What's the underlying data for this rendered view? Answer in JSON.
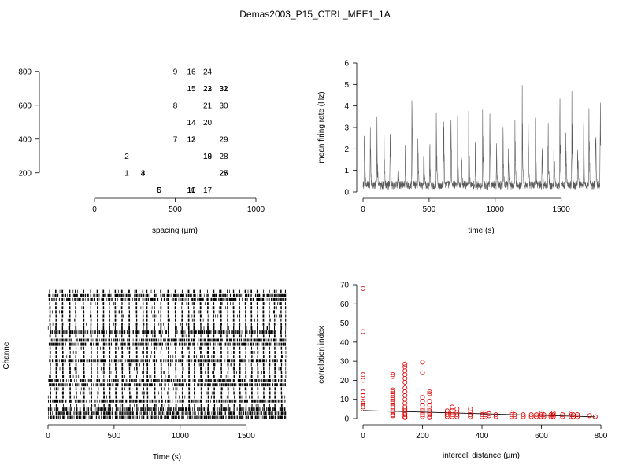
{
  "figure": {
    "title": "Demas2003_P15_CTRL_MEE1_1A"
  },
  "chart_data": [
    {
      "id": "layout",
      "type": "scatter",
      "xlabel": "spacing (µm)",
      "xlim": [
        0,
        1000
      ],
      "ylim": [
        50,
        850
      ],
      "xticks": [
        0,
        500,
        1000
      ],
      "yticks": [
        200,
        400,
        600,
        800
      ],
      "point_style": "text-labels",
      "points": [
        {
          "label": "9",
          "x": 500,
          "y": 800
        },
        {
          "label": "16",
          "x": 600,
          "y": 800
        },
        {
          "label": "24",
          "x": 700,
          "y": 800
        },
        {
          "label": "15",
          "x": 600,
          "y": 700
        },
        {
          "label": "22",
          "x": 700,
          "y": 700
        },
        {
          "label": "23",
          "x": 700,
          "y": 700
        },
        {
          "label": "31",
          "x": 800,
          "y": 700
        },
        {
          "label": "32",
          "x": 800,
          "y": 700
        },
        {
          "label": "8",
          "x": 500,
          "y": 600
        },
        {
          "label": "21",
          "x": 700,
          "y": 600
        },
        {
          "label": "30",
          "x": 800,
          "y": 600
        },
        {
          "label": "14",
          "x": 600,
          "y": 500
        },
        {
          "label": "20",
          "x": 700,
          "y": 500
        },
        {
          "label": "7",
          "x": 500,
          "y": 400
        },
        {
          "label": "12",
          "x": 600,
          "y": 400
        },
        {
          "label": "13",
          "x": 600,
          "y": 400
        },
        {
          "label": "29",
          "x": 800,
          "y": 400
        },
        {
          "label": "2",
          "x": 200,
          "y": 300
        },
        {
          "label": "18",
          "x": 700,
          "y": 300
        },
        {
          "label": "19",
          "x": 700,
          "y": 300
        },
        {
          "label": "28",
          "x": 800,
          "y": 300
        },
        {
          "label": "1",
          "x": 200,
          "y": 200
        },
        {
          "label": "3",
          "x": 300,
          "y": 200
        },
        {
          "label": "4",
          "x": 300,
          "y": 200
        },
        {
          "label": "25",
          "x": 800,
          "y": 200
        },
        {
          "label": "26",
          "x": 800,
          "y": 200
        },
        {
          "label": "27",
          "x": 800,
          "y": 200
        },
        {
          "label": "5",
          "x": 400,
          "y": 100
        },
        {
          "label": "6",
          "x": 400,
          "y": 100
        },
        {
          "label": "10",
          "x": 600,
          "y": 100
        },
        {
          "label": "11",
          "x": 600,
          "y": 100
        },
        {
          "label": "17",
          "x": 700,
          "y": 100
        }
      ]
    },
    {
      "id": "rate",
      "type": "line",
      "xlabel": "time (s)",
      "ylabel": "mean firing rate (Hz)",
      "xlim": [
        0,
        1800
      ],
      "ylim": [
        0,
        6
      ],
      "xticks": [
        0,
        500,
        1000,
        1500
      ],
      "yticks": [
        0,
        1,
        2,
        3,
        4,
        5,
        6
      ],
      "color": "#5a5a5a",
      "baseline_rate": 0.4,
      "bursts": [
        {
          "t": 10,
          "peak": 4.3
        },
        {
          "t": 55,
          "peak": 3.5
        },
        {
          "t": 105,
          "peak": 4.4
        },
        {
          "t": 160,
          "peak": 3.2
        },
        {
          "t": 205,
          "peak": 4.4
        },
        {
          "t": 265,
          "peak": 3.0
        },
        {
          "t": 320,
          "peak": 3.6
        },
        {
          "t": 370,
          "peak": 5.6
        },
        {
          "t": 415,
          "peak": 3.3
        },
        {
          "t": 460,
          "peak": 3.8
        },
        {
          "t": 505,
          "peak": 3.1
        },
        {
          "t": 555,
          "peak": 4.6
        },
        {
          "t": 610,
          "peak": 4.7
        },
        {
          "t": 665,
          "peak": 4.9
        },
        {
          "t": 715,
          "peak": 4.6
        },
        {
          "t": 745,
          "peak": 3.0
        },
        {
          "t": 800,
          "peak": 5.3
        },
        {
          "t": 850,
          "peak": 3.5
        },
        {
          "t": 905,
          "peak": 4.3
        },
        {
          "t": 960,
          "peak": 4.4
        },
        {
          "t": 1010,
          "peak": 3.5
        },
        {
          "t": 1060,
          "peak": 3.9
        },
        {
          "t": 1100,
          "peak": 3.2
        },
        {
          "t": 1150,
          "peak": 4.2
        },
        {
          "t": 1205,
          "peak": 5.7
        },
        {
          "t": 1250,
          "peak": 4.5
        },
        {
          "t": 1305,
          "peak": 5.3
        },
        {
          "t": 1355,
          "peak": 4.0
        },
        {
          "t": 1400,
          "peak": 4.5
        },
        {
          "t": 1445,
          "peak": 4.3
        },
        {
          "t": 1490,
          "peak": 5.5
        },
        {
          "t": 1535,
          "peak": 4.0
        },
        {
          "t": 1580,
          "peak": 5.7
        },
        {
          "t": 1625,
          "peak": 3.6
        },
        {
          "t": 1670,
          "peak": 4.2
        },
        {
          "t": 1710,
          "peak": 4.7
        },
        {
          "t": 1760,
          "peak": 4.5
        },
        {
          "t": 1795,
          "peak": 6.1
        }
      ]
    },
    {
      "id": "raster",
      "type": "raster",
      "xlabel": "Time (s)",
      "ylabel": "Channel",
      "xlim": [
        0,
        1800
      ],
      "xticks": [
        0,
        500,
        1000,
        1500
      ],
      "channels": 32,
      "burst_times": [
        10,
        55,
        105,
        160,
        205,
        265,
        320,
        370,
        415,
        460,
        505,
        555,
        610,
        665,
        715,
        745,
        800,
        850,
        905,
        960,
        1010,
        1060,
        1100,
        1150,
        1205,
        1250,
        1305,
        1355,
        1400,
        1445,
        1490,
        1535,
        1580,
        1625,
        1670,
        1710,
        1760,
        1795
      ],
      "tonic_channels": [
        1,
        2,
        10,
        12,
        13,
        17,
        22,
        23,
        27,
        29,
        30,
        31
      ]
    },
    {
      "id": "corr",
      "type": "scatter",
      "xlabel": "intercell distance (µm)",
      "ylabel": "correlation index",
      "xlim": [
        0,
        800
      ],
      "ylim": [
        0,
        70
      ],
      "xticks": [
        0,
        200,
        400,
        600,
        800
      ],
      "yticks": [
        0,
        10,
        20,
        30,
        40,
        50,
        60,
        70
      ],
      "marker_color": "#dd0000",
      "fit_line": {
        "x": [
          0,
          780
        ],
        "y": [
          4.2,
          0.9
        ]
      },
      "points": [
        [
          0,
          68
        ],
        [
          0,
          45.5
        ],
        [
          0,
          23
        ],
        [
          0,
          20
        ],
        [
          0,
          14
        ],
        [
          0,
          12
        ],
        [
          0,
          9
        ],
        [
          0,
          8
        ],
        [
          0,
          7
        ],
        [
          0,
          6
        ],
        [
          0,
          5
        ],
        [
          100,
          23
        ],
        [
          100,
          22
        ],
        [
          100,
          15
        ],
        [
          100,
          14
        ],
        [
          100,
          13
        ],
        [
          100,
          12
        ],
        [
          100,
          11
        ],
        [
          100,
          10
        ],
        [
          100,
          9
        ],
        [
          100,
          8
        ],
        [
          100,
          7
        ],
        [
          100,
          6
        ],
        [
          100,
          5
        ],
        [
          100,
          4
        ],
        [
          100,
          3
        ],
        [
          100,
          2
        ],
        [
          100,
          1.5
        ],
        [
          141,
          28.5
        ],
        [
          141,
          27
        ],
        [
          141,
          25
        ],
        [
          141,
          23
        ],
        [
          141,
          21
        ],
        [
          141,
          19
        ],
        [
          141,
          16
        ],
        [
          141,
          14
        ],
        [
          141,
          12
        ],
        [
          141,
          10
        ],
        [
          141,
          8
        ],
        [
          141,
          6
        ],
        [
          141,
          5
        ],
        [
          141,
          4
        ],
        [
          141,
          3
        ],
        [
          141,
          2
        ],
        [
          141,
          1
        ],
        [
          141,
          0.5
        ],
        [
          200,
          29.5
        ],
        [
          200,
          24
        ],
        [
          200,
          11
        ],
        [
          200,
          9
        ],
        [
          200,
          7
        ],
        [
          200,
          5
        ],
        [
          200,
          4
        ],
        [
          200,
          3
        ],
        [
          200,
          2
        ],
        [
          200,
          1
        ],
        [
          224,
          14
        ],
        [
          224,
          13
        ],
        [
          224,
          9
        ],
        [
          224,
          7
        ],
        [
          224,
          5
        ],
        [
          224,
          4
        ],
        [
          224,
          3
        ],
        [
          224,
          2
        ],
        [
          224,
          1
        ],
        [
          224,
          0.5
        ],
        [
          283,
          4
        ],
        [
          283,
          3
        ],
        [
          283,
          2
        ],
        [
          283,
          1
        ],
        [
          300,
          6
        ],
        [
          300,
          4
        ],
        [
          300,
          3
        ],
        [
          300,
          2
        ],
        [
          300,
          1
        ],
        [
          316,
          5
        ],
        [
          316,
          3
        ],
        [
          316,
          2
        ],
        [
          316,
          1
        ],
        [
          361,
          5
        ],
        [
          361,
          3
        ],
        [
          361,
          2
        ],
        [
          361,
          1
        ],
        [
          400,
          3
        ],
        [
          400,
          2
        ],
        [
          400,
          1
        ],
        [
          412,
          3
        ],
        [
          412,
          2
        ],
        [
          412,
          1
        ],
        [
          424,
          2.5
        ],
        [
          424,
          1.5
        ],
        [
          447,
          2
        ],
        [
          447,
          1
        ],
        [
          500,
          3
        ],
        [
          500,
          2
        ],
        [
          500,
          1
        ],
        [
          510,
          2
        ],
        [
          510,
          1
        ],
        [
          539,
          2
        ],
        [
          539,
          1
        ],
        [
          566,
          2
        ],
        [
          566,
          1
        ],
        [
          583,
          2
        ],
        [
          583,
          1
        ],
        [
          600,
          3
        ],
        [
          600,
          2
        ],
        [
          600,
          1
        ],
        [
          608,
          2
        ],
        [
          608,
          1
        ],
        [
          632,
          2
        ],
        [
          632,
          1
        ],
        [
          640,
          3
        ],
        [
          640,
          2
        ],
        [
          640,
          1
        ],
        [
          671,
          2
        ],
        [
          671,
          1
        ],
        [
          700,
          3
        ],
        [
          700,
          2
        ],
        [
          700,
          1
        ],
        [
          707,
          2
        ],
        [
          707,
          1
        ],
        [
          721,
          2
        ],
        [
          721,
          1
        ],
        [
          762,
          1.5
        ],
        [
          781,
          1
        ]
      ]
    }
  ]
}
